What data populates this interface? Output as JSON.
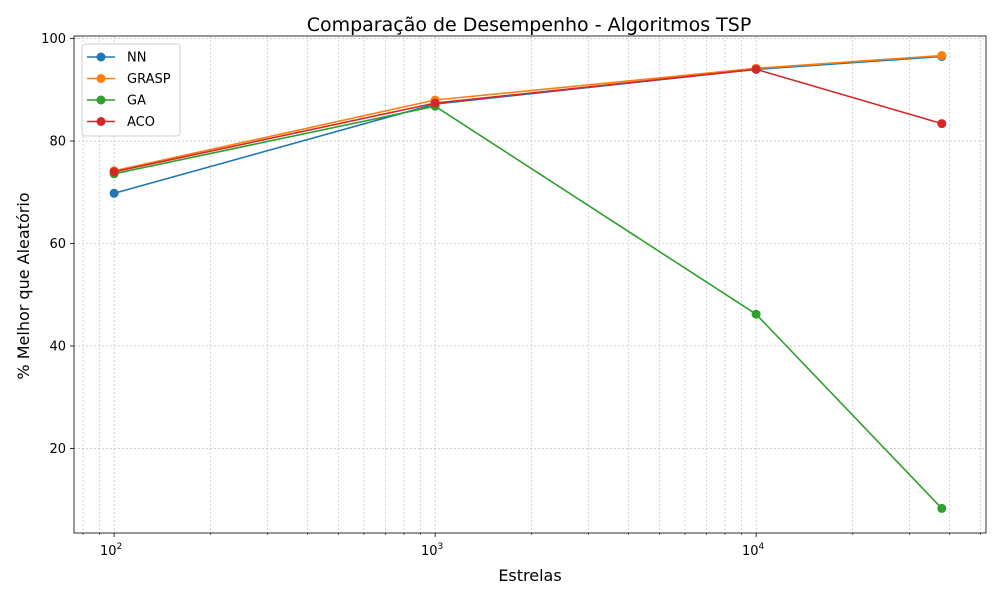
{
  "chart_data": {
    "type": "line",
    "title": "Comparação de Desempenho - Algoritmos TSP",
    "xlabel": "Estrelas",
    "ylabel": "% Melhor que Aleatório",
    "xscale": "log",
    "x": [
      100,
      1000,
      10000,
      37859
    ],
    "xlim": [
      75,
      52000
    ],
    "ylim": [
      3.5,
      100.5
    ],
    "xticks": [
      {
        "value": 100,
        "base": "10",
        "exp": "2"
      },
      {
        "value": 1000,
        "base": "10",
        "exp": "3"
      },
      {
        "value": 10000,
        "base": "10",
        "exp": "4"
      }
    ],
    "yticks": [
      20,
      40,
      60,
      80,
      100
    ],
    "grid": true,
    "legend_position": "top-left",
    "series": [
      {
        "name": "NN",
        "color": "#1f77b4",
        "values": [
          69.8,
          87.2,
          94.0,
          96.5
        ]
      },
      {
        "name": "GRASP",
        "color": "#ff7f0e",
        "values": [
          74.2,
          88.0,
          94.2,
          96.7
        ]
      },
      {
        "name": "GA",
        "color": "#2ca02c",
        "values": [
          73.6,
          86.8,
          46.2,
          8.3
        ]
      },
      {
        "name": "ACO",
        "color": "#d62728",
        "values": [
          74.0,
          87.4,
          94.0,
          83.4
        ]
      }
    ]
  }
}
